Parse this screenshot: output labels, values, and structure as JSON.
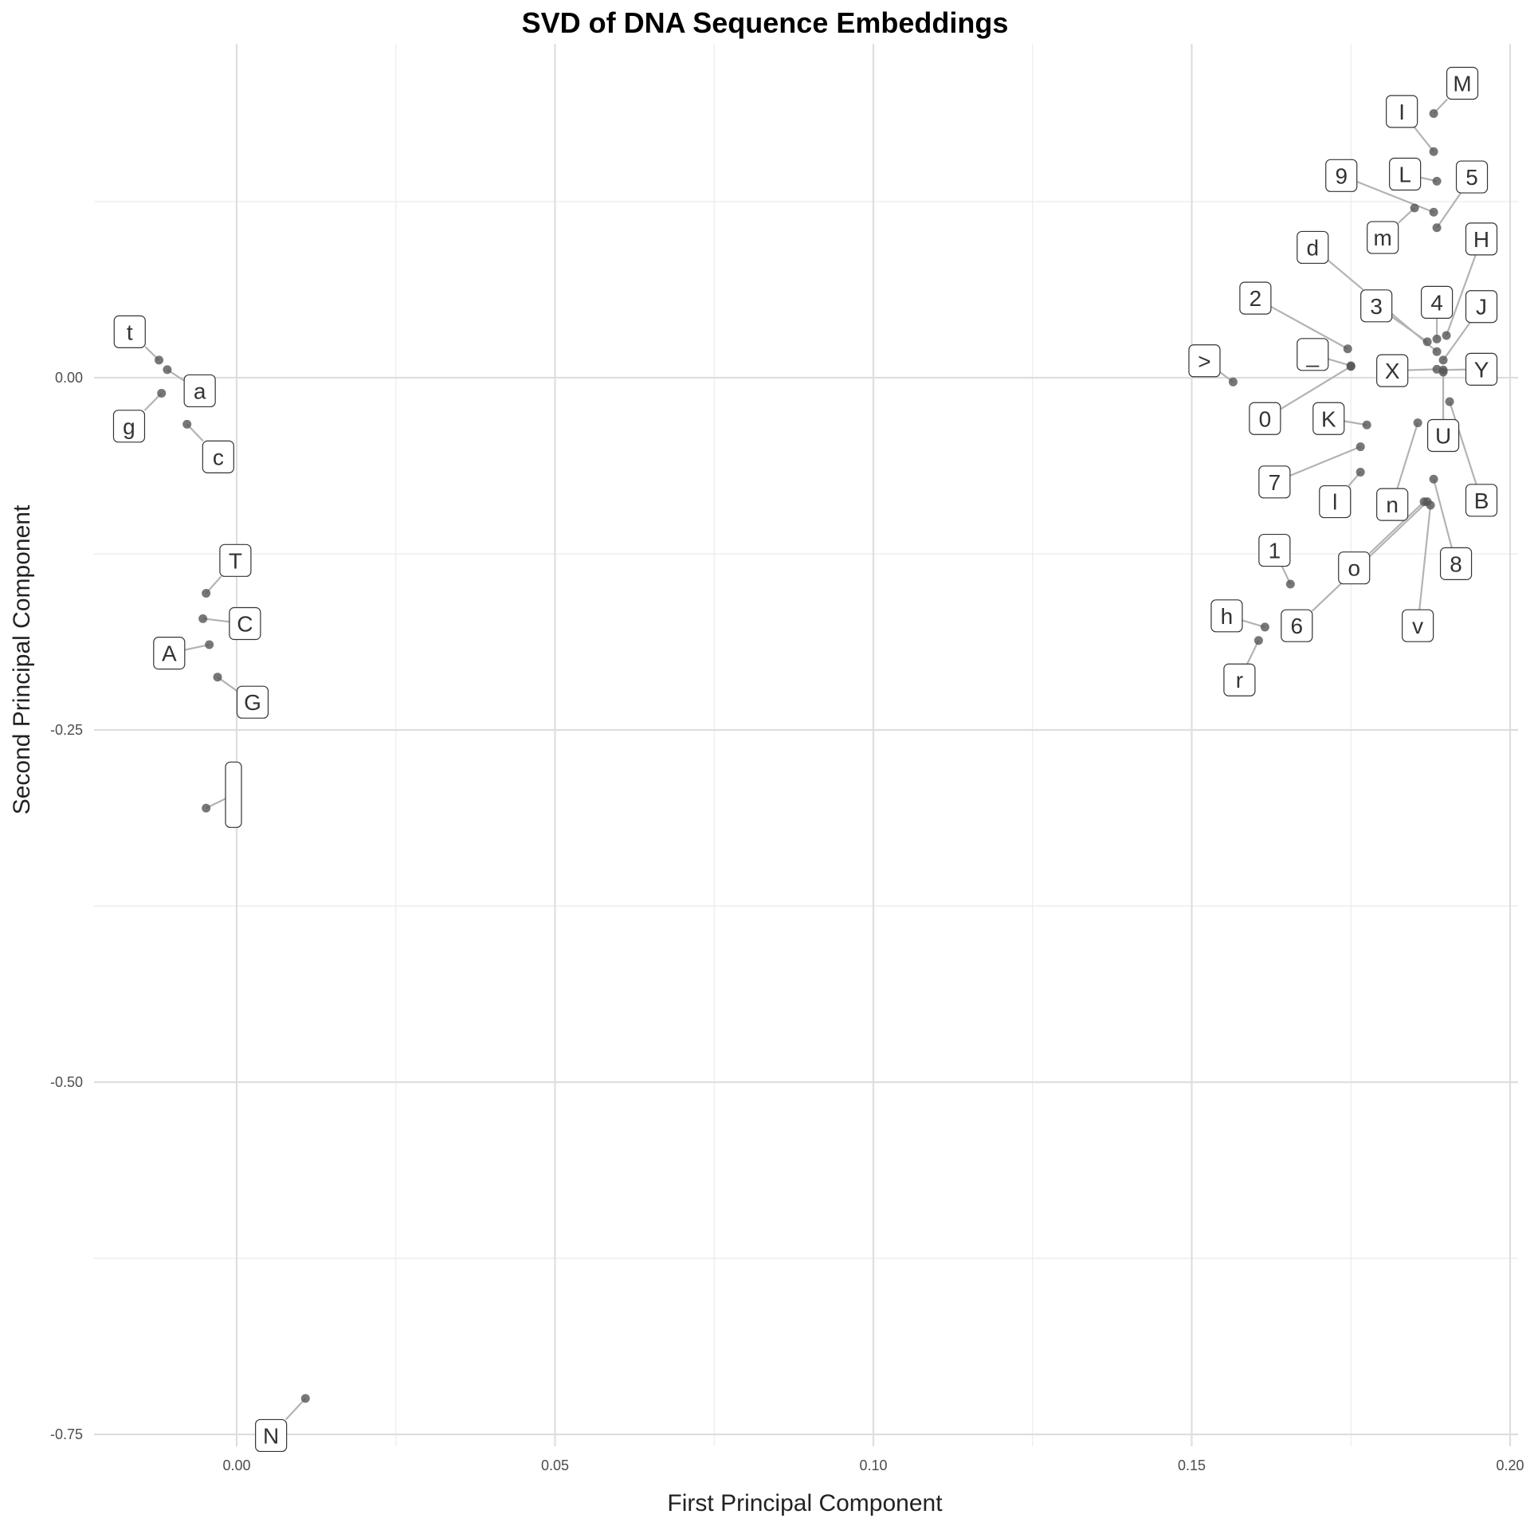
{
  "chart_data": {
    "type": "scatter",
    "title": "SVD of DNA Sequence Embeddings",
    "xlabel": "First Principal Component",
    "ylabel": "Second Principal Component",
    "xlim": [
      -0.022,
      0.2
    ],
    "ylim": [
      -0.765,
      0.265
    ],
    "x_ticks": [
      0.0,
      0.05,
      0.1,
      0.15,
      0.2
    ],
    "x_tick_labels": [
      "0.00",
      "0.05",
      "0.10",
      "0.15",
      "0.20"
    ],
    "y_ticks": [
      0.0,
      -0.25,
      -0.5,
      -0.75
    ],
    "y_tick_labels": [
      "0.00",
      "-0.25",
      "-0.50",
      "-0.75"
    ],
    "grid": true,
    "point_color": "#555555",
    "points": [
      {
        "label": "t",
        "x": -0.0122,
        "y": 0.0125,
        "lx": -0.0168,
        "ly": 0.0326
      },
      {
        "label": "a",
        "x": -0.0109,
        "y": 0.0057,
        "lx": -0.0058,
        "ly": -0.0093
      },
      {
        "label": "g",
        "x": -0.0118,
        "y": -0.011,
        "lx": -0.0169,
        "ly": -0.0344
      },
      {
        "label": "c",
        "x": -0.0078,
        "y": -0.033,
        "lx": -0.0029,
        "ly": -0.0562
      },
      {
        "label": "T",
        "x": -0.0048,
        "y": -0.153,
        "lx": -0.0002,
        "ly": -0.1297
      },
      {
        "label": "C",
        "x": -0.0053,
        "y": -0.171,
        "lx": 0.0013,
        "ly": -0.1745
      },
      {
        "label": "A",
        "x": -0.0043,
        "y": -0.1895,
        "lx": -0.0106,
        "ly": -0.1955
      },
      {
        "label": "G",
        "x": -0.003,
        "y": -0.2125,
        "lx": 0.0025,
        "ly": -0.2303
      },
      {
        "label": "",
        "x": -0.0048,
        "y": -0.3055,
        "lx": -0.0005,
        "ly": -0.296
      },
      {
        "label": "N",
        "x": 0.0108,
        "y": -0.7245,
        "lx": 0.0054,
        "ly": -0.7508
      },
      {
        "label": "M",
        "x": 0.188,
        "y": 0.1875,
        "lx": 0.1925,
        "ly": 0.209
      },
      {
        "label": "I",
        "x": 0.188,
        "y": 0.1605,
        "lx": 0.183,
        "ly": 0.189
      },
      {
        "label": "L",
        "x": 0.1885,
        "y": 0.1395,
        "lx": 0.1835,
        "ly": 0.1445
      },
      {
        "label": "5",
        "x": 0.1885,
        "y": 0.1065,
        "lx": 0.194,
        "ly": 0.1425
      },
      {
        "label": "9",
        "x": 0.188,
        "y": 0.1175,
        "lx": 0.1735,
        "ly": 0.1435
      },
      {
        "label": "m",
        "x": 0.185,
        "y": 0.1205,
        "lx": 0.18,
        "ly": 0.0995
      },
      {
        "label": "H",
        "x": 0.19,
        "y": 0.03,
        "lx": 0.1955,
        "ly": 0.0985
      },
      {
        "label": "d",
        "x": 0.1885,
        "y": 0.0185,
        "lx": 0.169,
        "ly": 0.0925
      },
      {
        "label": "2",
        "x": 0.1745,
        "y": 0.0205,
        "lx": 0.16,
        "ly": 0.0565
      },
      {
        "label": "3",
        "x": 0.187,
        "y": 0.0255,
        "lx": 0.179,
        "ly": 0.051
      },
      {
        "label": "4",
        "x": 0.1885,
        "y": 0.0275,
        "lx": 0.1885,
        "ly": 0.0535
      },
      {
        "label": "J",
        "x": 0.1895,
        "y": 0.0125,
        "lx": 0.1955,
        "ly": 0.0505
      },
      {
        "label": "_",
        "x": 0.175,
        "y": 0.0085,
        "lx": 0.169,
        "ly": 0.0165
      },
      {
        "label": ">",
        "x": 0.1565,
        "y": -0.003,
        "lx": 0.152,
        "ly": 0.012
      },
      {
        "label": "X",
        "x": 0.1885,
        "y": 0.006,
        "lx": 0.1815,
        "ly": 0.005
      },
      {
        "label": "Y",
        "x": 0.1895,
        "y": 0.0055,
        "lx": 0.1955,
        "ly": 0.006
      },
      {
        "label": "0",
        "x": 0.175,
        "y": 0.008,
        "lx": 0.1615,
        "ly": -0.029
      },
      {
        "label": "K",
        "x": 0.1775,
        "y": -0.0335,
        "lx": 0.1715,
        "ly": -0.029
      },
      {
        "label": "U",
        "x": 0.1895,
        "y": 0.004,
        "lx": 0.1895,
        "ly": -0.041
      },
      {
        "label": "B",
        "x": 0.1905,
        "y": -0.017,
        "lx": 0.1955,
        "ly": -0.087
      },
      {
        "label": "n",
        "x": 0.1855,
        "y": -0.032,
        "lx": 0.1815,
        "ly": -0.09
      },
      {
        "label": "7",
        "x": 0.1765,
        "y": -0.049,
        "lx": 0.163,
        "ly": -0.074
      },
      {
        "label": "l",
        "x": 0.1765,
        "y": -0.067,
        "lx": 0.1725,
        "ly": -0.088
      },
      {
        "label": "8",
        "x": 0.188,
        "y": -0.072,
        "lx": 0.1915,
        "ly": -0.132
      },
      {
        "label": "o",
        "x": 0.1865,
        "y": -0.088,
        "lx": 0.1755,
        "ly": -0.135
      },
      {
        "label": "6",
        "x": 0.187,
        "y": -0.088,
        "lx": 0.1665,
        "ly": -0.176
      },
      {
        "label": "v",
        "x": 0.1875,
        "y": -0.0905,
        "lx": 0.1855,
        "ly": -0.176
      },
      {
        "label": "1",
        "x": 0.1655,
        "y": -0.1465,
        "lx": 0.163,
        "ly": -0.1225
      },
      {
        "label": "h",
        "x": 0.1615,
        "y": -0.177,
        "lx": 0.1555,
        "ly": -0.169
      },
      {
        "label": "r",
        "x": 0.1605,
        "y": -0.1865,
        "lx": 0.1575,
        "ly": -0.2145
      }
    ]
  }
}
